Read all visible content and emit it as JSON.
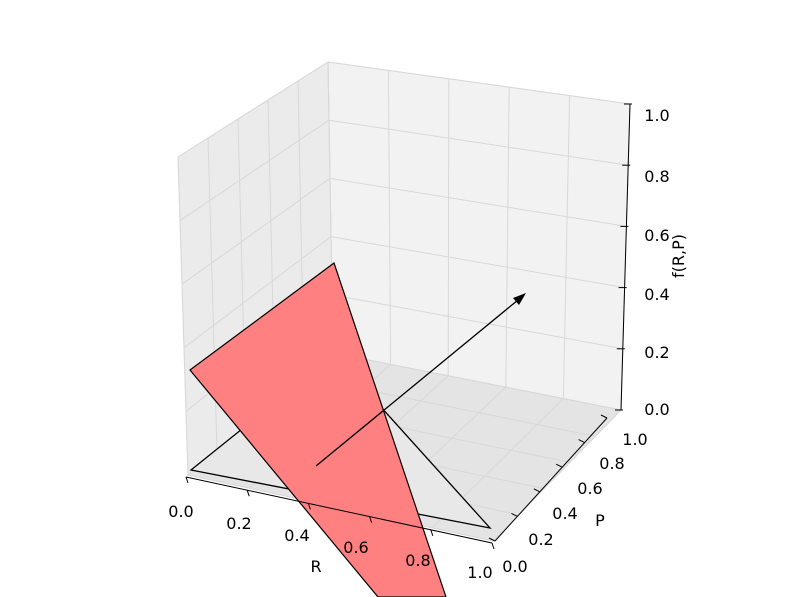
{
  "chart_data": {
    "type": "surface3d",
    "title": "",
    "xlabel": "R",
    "ylabel": "P",
    "zlabel": "f(R,P)",
    "xlim": [
      0,
      1
    ],
    "ylim": [
      0,
      1
    ],
    "zlim": [
      0,
      1
    ],
    "x_ticks": [
      "0.0",
      "0.2",
      "0.4",
      "0.6",
      "0.8",
      "1.0"
    ],
    "y_ticks": [
      "0.0",
      "0.2",
      "0.4",
      "0.6",
      "0.8",
      "1.0"
    ],
    "z_ticks": [
      "0.0",
      "0.2",
      "0.4",
      "0.6",
      "0.8",
      "1.0"
    ],
    "grid": true,
    "domain_triangle": {
      "vertices": [
        [
          0,
          0,
          0
        ],
        [
          1,
          0,
          0
        ],
        [
          0,
          1,
          0
        ]
      ],
      "color": "#e8e8e8"
    },
    "surface_plane": {
      "color": "#ff8080",
      "alpha": 1
    },
    "arrow": {
      "from": [
        0.33,
        0.33,
        0
      ],
      "direction": "normal to surface",
      "color": "#000000"
    }
  }
}
